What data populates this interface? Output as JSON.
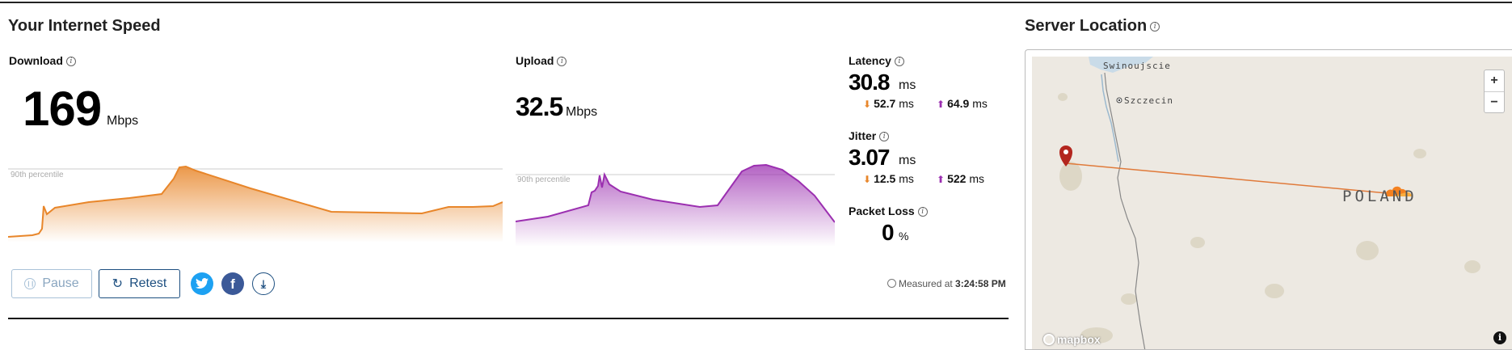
{
  "speed": {
    "title": "Your Internet Speed",
    "download": {
      "label": "Download",
      "value": "169",
      "unit": "Mbps",
      "percentile_label": "90th percentile"
    },
    "upload": {
      "label": "Upload",
      "value": "32.5",
      "unit": "Mbps",
      "percentile_label": "90th percentile"
    },
    "latency": {
      "label": "Latency",
      "value": "30.8",
      "unit": "ms",
      "down": "52.7",
      "down_unit": "ms",
      "up": "64.9",
      "up_unit": "ms"
    },
    "jitter": {
      "label": "Jitter",
      "value": "3.07",
      "unit": "ms",
      "down": "12.5",
      "down_unit": "ms",
      "up": "522",
      "up_unit": "ms"
    },
    "packet_loss": {
      "label": "Packet Loss",
      "value": "0",
      "unit": "%"
    },
    "buttons": {
      "pause": "Pause",
      "retest": "Retest"
    },
    "measured": {
      "prefix": "Measured at",
      "time": "3:24:58 PM"
    }
  },
  "server": {
    "title": "Server Location",
    "map": {
      "places": [
        "Swinoujscie",
        "Szczecin"
      ],
      "country": "POLAND",
      "brand": "mapbox",
      "zoom_in": "+",
      "zoom_out": "−",
      "info": "i"
    }
  },
  "colors": {
    "download": "#e8862a",
    "upload": "#9b2fb0",
    "accent": "#1d4f80"
  }
}
